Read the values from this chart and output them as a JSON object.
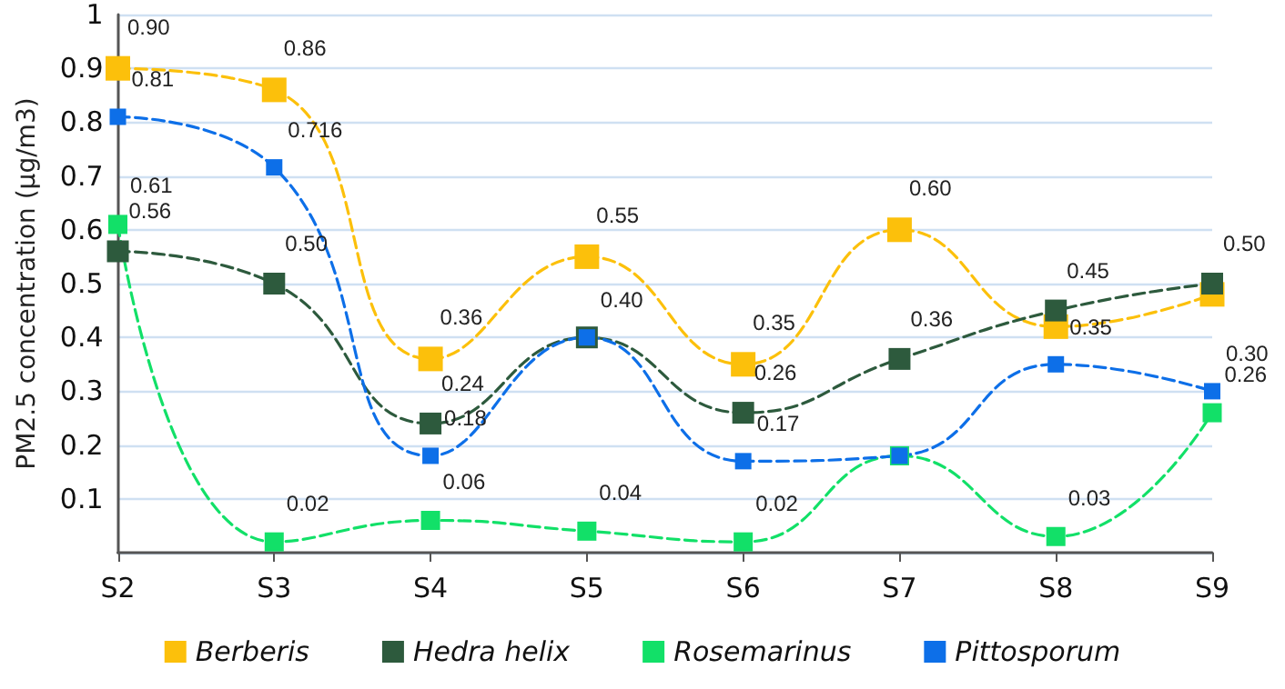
{
  "chart_data": {
    "type": "line",
    "ylabel": "PM2.5 concentration (µg/m3)",
    "categories": [
      "S2",
      "S3",
      "S4",
      "S5",
      "S6",
      "S7",
      "S8",
      "S9"
    ],
    "series": [
      {
        "name": "Berberis",
        "color": "#fcc00b",
        "values": [
          0.9,
          0.86,
          0.36,
          0.55,
          0.35,
          0.6,
          0.42,
          0.48
        ],
        "value_labels": [
          "0.90",
          "0.86",
          "0.36",
          "0.55",
          "0.35",
          "0.60",
          null,
          null
        ]
      },
      {
        "name": "Hedra helix",
        "color": "#2d5a3d",
        "values": [
          0.56,
          0.5,
          0.24,
          0.4,
          0.26,
          0.36,
          0.45,
          0.5
        ],
        "value_labels": [
          "0.56",
          "0.50",
          "0.24",
          null,
          "0.26",
          "0.36",
          "0.45",
          "0.50"
        ]
      },
      {
        "name": "Rosemarinus",
        "color": "#12e068",
        "values": [
          0.61,
          0.02,
          0.06,
          0.04,
          0.02,
          0.18,
          0.03,
          0.26
        ],
        "value_labels": [
          "0.61",
          "0.02",
          "0.06",
          "0.04",
          "0.02",
          null,
          "0.03",
          "0.26"
        ]
      },
      {
        "name": "Pittosporum",
        "color": "#0d6fe8",
        "values": [
          0.81,
          0.716,
          0.18,
          0.4,
          0.17,
          0.18,
          0.35,
          0.3
        ],
        "value_labels": [
          "0.81",
          "0.716",
          "0.18",
          "0.40",
          "0.17",
          null,
          "0.35",
          "0.30"
        ]
      }
    ],
    "ylim": [
      0,
      1
    ],
    "yticks": [
      {
        "value": 0,
        "label": null
      },
      0.1,
      0.2,
      0.3,
      0.4,
      0.5,
      0.6,
      0.7,
      0.8,
      0.9,
      1
    ],
    "grid": "y",
    "legend": "bottom",
    "marker": "square",
    "line_style": "dashed"
  }
}
